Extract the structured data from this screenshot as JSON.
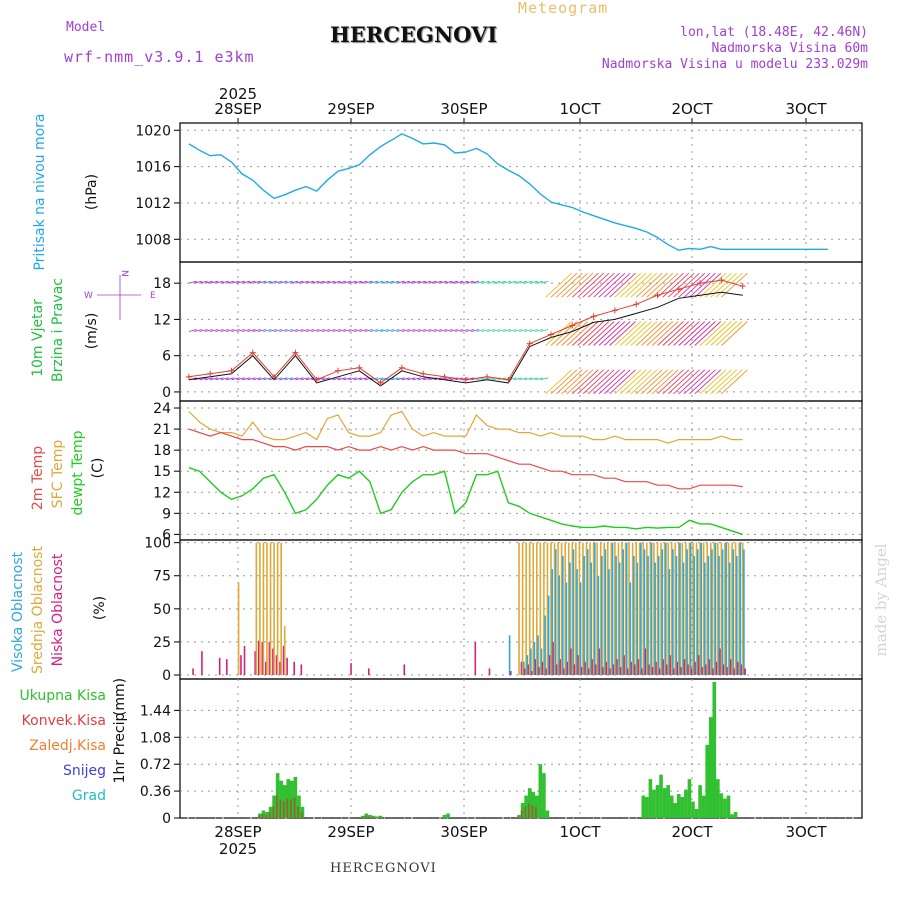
{
  "header": {
    "model_label": "Model",
    "model_name": "wrf-nmm_v3.9.1 e3km",
    "title": "HERCEGNOVI",
    "meteogram": "Meteogram",
    "coords": "lon,lat (18.48E, 42.46N)",
    "elevation": "Nadmorska Visina 60m",
    "model_elevation": "Nadmorska Visina u modelu 233.029m"
  },
  "footer": {
    "station": "HERCEGNOVI",
    "credit": "made by Angel"
  },
  "colors": {
    "pressure": "#22a8e8",
    "t2m": "#e84848",
    "tsfc": "#e0a838",
    "dewpt": "#20cc20",
    "wind_low": "#a030e0",
    "wind_mid": "#2090f0",
    "gust": "#e04030",
    "cloud_high": "#30a8d8",
    "cloud_mid": "#e0a838",
    "cloud_low": "#d02080",
    "precip_total": "#30c030",
    "precip_conv": "#e04040"
  },
  "chart_data": [
    {
      "type": "line",
      "panel": "pressure",
      "ylabel": "Pritisak na nivou mora",
      "unit": "(hPa)",
      "yticks": [
        1008,
        1012,
        1016,
        1020
      ],
      "ylim": [
        1005.5,
        1020.8
      ],
      "x_top_labels": [
        "28SEP",
        "29SEP",
        "30SEP",
        "1OCT",
        "2OCT",
        "3OCT"
      ],
      "x_top_year": "2025",
      "x_hours": [
        0,
        6,
        12,
        18,
        24,
        30,
        36,
        42,
        48,
        54,
        60,
        66,
        72,
        78,
        84,
        90,
        96,
        102,
        108,
        114,
        120,
        126,
        132,
        138,
        144,
        150,
        156,
        162,
        168,
        174,
        180,
        186,
        192,
        198,
        204,
        210,
        216,
        222,
        228,
        234,
        240,
        246,
        252,
        258,
        264,
        270,
        276,
        282,
        288,
        294,
        300,
        306,
        312,
        318,
        324,
        330,
        336,
        342,
        348,
        354,
        360
      ],
      "series": [
        {
          "name": "MSLP",
          "values": [
            1018.5,
            1017.8,
            1017.2,
            1017.3,
            1016.5,
            1015.2,
            1014.5,
            1013.4,
            1012.5,
            1012.9,
            1013.4,
            1013.8,
            1013.3,
            1014.5,
            1015.5,
            1015.8,
            1016.2,
            1017.3,
            1018.2,
            1018.9,
            1019.6,
            1019.1,
            1018.5,
            1018.6,
            1018.4,
            1017.5,
            1017.6,
            1018.0,
            1017.4,
            1016.3,
            1015.6,
            1015.0,
            1014.1,
            1013.0,
            1012.1,
            1011.8,
            1011.5,
            1011.0,
            1010.6,
            1010.2,
            1009.8,
            1009.5,
            1009.2,
            1008.8,
            1008.2,
            1007.4,
            1006.8,
            1007.0,
            1006.9,
            1007.2,
            1006.9,
            1006.9,
            1006.9,
            1006.9,
            1006.9,
            1006.9,
            1006.9,
            1006.9,
            1006.9,
            1006.9,
            1006.9
          ]
        }
      ]
    },
    {
      "type": "line",
      "panel": "wind",
      "ylabel": "10m Vjetar",
      "ylabel2": "Brzina i Pravac",
      "unit": "(m/s)",
      "compass": {
        "n": "N",
        "w": "W",
        "e": "E"
      },
      "yticks": [
        0,
        6,
        12,
        18
      ],
      "ylim": [
        -1.5,
        21.5
      ],
      "x_hours": [
        0,
        12,
        24,
        36,
        48,
        60,
        72,
        84,
        96,
        108,
        120,
        132,
        144,
        156,
        168,
        180,
        192,
        204,
        216,
        228,
        240,
        252,
        264,
        276,
        288,
        300,
        312
      ],
      "series": [
        {
          "name": "wind_speed",
          "values": [
            2.0,
            2.5,
            3.0,
            6.0,
            2.0,
            6.0,
            1.5,
            2.5,
            3.5,
            1.0,
            3.5,
            2.5,
            2.0,
            1.5,
            2.0,
            1.5,
            7.5,
            9.0,
            10.0,
            11.5,
            12.0,
            13.0,
            14.0,
            15.5,
            16.0,
            16.5,
            16.0
          ]
        },
        {
          "name": "gust",
          "values": [
            2.5,
            3.0,
            3.5,
            6.5,
            2.5,
            6.5,
            2.0,
            3.5,
            4.0,
            1.5,
            4.0,
            3.0,
            2.5,
            2.0,
            2.5,
            2.0,
            8.0,
            9.5,
            11.0,
            12.5,
            13.5,
            14.5,
            16.0,
            17.0,
            18.0,
            18.5,
            17.5
          ]
        }
      ]
    },
    {
      "type": "line",
      "panel": "temperature",
      "ylabel": "2m Temp",
      "ylabel2": "SFC Temp",
      "ylabel3": "dewpt Temp",
      "unit": "(C)",
      "yticks": [
        6,
        9,
        12,
        15,
        18,
        21,
        24
      ],
      "ylim": [
        5.2,
        25.0
      ],
      "x_hours": [
        0,
        6,
        12,
        18,
        24,
        30,
        36,
        42,
        48,
        54,
        60,
        66,
        72,
        78,
        84,
        90,
        96,
        102,
        108,
        114,
        120,
        126,
        132,
        138,
        144,
        150,
        156,
        162,
        168,
        174,
        180,
        186,
        192,
        198,
        204,
        210,
        216,
        222,
        228,
        234,
        240,
        246,
        252,
        258,
        264,
        270,
        276,
        282,
        288,
        294,
        300,
        306,
        312
      ],
      "series": [
        {
          "name": "2m Temp",
          "values": [
            21.0,
            20.5,
            20.0,
            20.5,
            20.0,
            19.5,
            19.5,
            19.0,
            18.5,
            18.5,
            18.0,
            18.5,
            18.5,
            18.5,
            18.0,
            18.5,
            18.0,
            18.0,
            18.5,
            18.0,
            18.5,
            18.0,
            18.5,
            18.0,
            18.0,
            18.0,
            17.5,
            17.5,
            17.5,
            17.0,
            16.5,
            16.0,
            16.0,
            15.5,
            15.0,
            15.0,
            14.5,
            14.5,
            14.5,
            14.0,
            14.0,
            13.5,
            13.5,
            13.5,
            13.0,
            13.0,
            12.5,
            12.5,
            13.0,
            13.0,
            13.0,
            13.0,
            12.8
          ]
        },
        {
          "name": "SFC Temp",
          "values": [
            23.5,
            22.0,
            21.0,
            20.5,
            20.5,
            20.0,
            22.0,
            20.0,
            19.5,
            19.5,
            20.0,
            20.5,
            19.5,
            22.5,
            23.0,
            20.5,
            20.0,
            20.0,
            20.5,
            23.0,
            23.5,
            21.0,
            20.0,
            20.5,
            20.0,
            20.0,
            20.0,
            23.0,
            21.5,
            21.0,
            21.0,
            20.5,
            20.5,
            20.0,
            20.5,
            20.0,
            20.0,
            20.0,
            19.5,
            19.5,
            20.0,
            19.5,
            19.5,
            19.5,
            19.5,
            19.0,
            19.5,
            19.5,
            19.5,
            19.5,
            20.0,
            19.5,
            19.5
          ]
        },
        {
          "name": "dewpt Temp",
          "values": [
            15.5,
            15.0,
            13.5,
            12.0,
            11.0,
            11.5,
            12.5,
            14.0,
            14.5,
            12.0,
            9.0,
            9.5,
            11.0,
            13.0,
            14.5,
            14.0,
            15.0,
            13.5,
            9.0,
            9.5,
            12.0,
            13.5,
            14.5,
            14.5,
            15.0,
            9.0,
            10.5,
            14.5,
            14.5,
            15.0,
            10.5,
            10.0,
            9.0,
            8.5,
            8.0,
            7.5,
            7.2,
            7.0,
            7.0,
            7.2,
            7.0,
            7.0,
            6.8,
            7.0,
            6.9,
            7.0,
            7.0,
            8.0,
            7.5,
            7.5,
            7.0,
            6.5,
            6.0
          ]
        }
      ]
    },
    {
      "type": "bar",
      "panel": "clouds",
      "ylabel": "Visoka Oblacnost",
      "ylabel2": "Srednja Oblacnost",
      "ylabel3": "Niska Oblacnost",
      "unit": "(%)",
      "yticks": [
        0,
        25,
        50,
        75,
        100
      ],
      "ylim": [
        -3,
        102
      ],
      "x_hours": [
        1,
        6,
        16,
        20,
        28,
        30,
        36,
        38,
        40,
        42,
        44,
        46,
        48,
        50,
        52,
        54,
        58,
        62,
        90,
        100,
        120,
        160,
        168,
        180,
        186,
        188,
        190,
        192,
        194,
        196,
        198,
        200,
        202,
        204,
        206,
        208,
        210,
        212,
        214,
        216,
        218,
        220,
        222,
        224,
        226,
        228,
        230,
        232,
        234,
        236,
        238,
        240,
        242,
        244,
        246,
        248,
        250,
        252,
        254,
        256,
        258,
        260,
        262,
        264,
        266,
        268,
        270,
        272,
        274,
        276,
        278,
        280,
        282,
        284,
        286,
        288,
        290,
        292,
        294,
        296,
        298,
        300,
        302,
        304,
        306,
        308,
        310,
        312
      ],
      "series": [
        {
          "name": "Srednja",
          "values": [
            0,
            0,
            0,
            0,
            70,
            0,
            0,
            100,
            100,
            100,
            100,
            100,
            100,
            100,
            100,
            37,
            0,
            0,
            0,
            0,
            0,
            0,
            0,
            0,
            100,
            100,
            100,
            100,
            100,
            100,
            100,
            100,
            100,
            100,
            100,
            100,
            100,
            100,
            100,
            100,
            100,
            100,
            100,
            100,
            100,
            100,
            100,
            100,
            100,
            100,
            100,
            100,
            100,
            100,
            100,
            100,
            100,
            100,
            100,
            100,
            100,
            100,
            100,
            100,
            100,
            100,
            100,
            100,
            100,
            100,
            100,
            100,
            100,
            100,
            100,
            100,
            100,
            100,
            100,
            100,
            100,
            100,
            100,
            100,
            100,
            100,
            100,
            100
          ]
        },
        {
          "name": "Visoka",
          "values": [
            0,
            0,
            0,
            0,
            0,
            0,
            0,
            0,
            0,
            0,
            0,
            0,
            0,
            0,
            0,
            0,
            0,
            0,
            0,
            0,
            0,
            0,
            0,
            30,
            0,
            10,
            15,
            20,
            25,
            30,
            20,
            45,
            60,
            80,
            95,
            75,
            90,
            70,
            85,
            95,
            80,
            70,
            90,
            95,
            85,
            100,
            75,
            90,
            95,
            80,
            100,
            90,
            85,
            95,
            100,
            70,
            90,
            85,
            100,
            95,
            90,
            100,
            85,
            90,
            95,
            100,
            80,
            95,
            90,
            100,
            85,
            95,
            100,
            90,
            95,
            100,
            85,
            90,
            95,
            100,
            90,
            95,
            100,
            85,
            95,
            90,
            100,
            95
          ]
        },
        {
          "name": "Niska",
          "values": [
            5,
            18,
            13,
            12,
            15,
            22,
            18,
            26,
            25,
            10,
            25,
            20,
            15,
            10,
            22,
            13,
            10,
            8,
            9,
            5,
            8,
            25,
            5,
            3,
            10,
            5,
            8,
            3,
            12,
            6,
            10,
            5,
            15,
            25,
            8,
            12,
            5,
            10,
            20,
            8,
            15,
            6,
            10,
            5,
            12,
            8,
            20,
            6,
            10,
            5,
            8,
            12,
            6,
            15,
            5,
            10,
            8,
            12,
            5,
            20,
            8,
            6,
            10,
            5,
            12,
            8,
            15,
            5,
            10,
            6,
            12,
            8,
            5,
            10,
            15,
            6,
            8,
            12,
            5,
            10,
            20,
            8,
            6,
            12,
            5,
            10,
            8,
            5
          ]
        }
      ]
    },
    {
      "type": "bar",
      "panel": "precip",
      "ylabel": "1hr Precip",
      "unit": "(mm)",
      "legend": [
        "Ukupna Kisa",
        "Konvek.Kisa",
        "Zaledj.Kisa",
        "Snijeg",
        "Grad"
      ],
      "yticks": [
        0,
        0.36,
        0.72,
        1.08,
        1.44
      ],
      "ytick_labels": [
        "0",
        "0.36",
        "0.72",
        "1.08",
        "1.44"
      ],
      "ylim": [
        0,
        1.86
      ],
      "x_bottom_labels": [
        "28SEP",
        "29SEP",
        "30SEP",
        "1OCT",
        "2OCT",
        "3OCT"
      ],
      "x_bottom_year": "2025",
      "x_hours": [
        40,
        42,
        44,
        46,
        48,
        50,
        52,
        54,
        56,
        58,
        60,
        62,
        64,
        98,
        100,
        102,
        104,
        106,
        108,
        144,
        146,
        186,
        188,
        190,
        192,
        194,
        196,
        198,
        200,
        202,
        256,
        258,
        260,
        262,
        264,
        266,
        268,
        270,
        272,
        274,
        276,
        278,
        280,
        282,
        284,
        286,
        288,
        290,
        292,
        294,
        296,
        298,
        300,
        302,
        304,
        306,
        308
      ],
      "series": [
        {
          "name": "Ukupna Kisa",
          "values": [
            0.06,
            0.1,
            0.08,
            0.15,
            0.3,
            0.6,
            0.5,
            0.44,
            0.52,
            0.5,
            0.55,
            0.3,
            0.15,
            0.03,
            0.06,
            0.04,
            0.03,
            0.02,
            0.03,
            0.04,
            0.06,
            0.04,
            0.2,
            0.3,
            0.4,
            0.35,
            0.3,
            0.72,
            0.6,
            0.1,
            0.3,
            0.28,
            0.52,
            0.38,
            0.44,
            0.58,
            0.4,
            0.44,
            0.3,
            0.2,
            0.32,
            0.28,
            0.38,
            0.52,
            0.22,
            0.12,
            0.44,
            0.3,
            0.98,
            1.35,
            1.82,
            0.52,
            0.33,
            0.26,
            0.3,
            0.05,
            0.08
          ]
        },
        {
          "name": "Konvek.Kisa",
          "values": [
            0.06,
            0.1,
            0.08,
            0.15,
            0.3,
            0.6,
            0.5,
            0.44,
            0.52,
            0.5,
            0.55,
            0.3,
            0.15,
            0.03,
            0.06,
            0.04,
            0.03,
            0.02,
            0.03,
            0.0,
            0.0,
            0.04,
            0.2,
            0.3,
            0.4,
            0.35,
            0.3,
            0.0,
            0.0,
            0.0,
            0,
            0,
            0,
            0,
            0,
            0,
            0,
            0,
            0,
            0,
            0,
            0,
            0,
            0,
            0,
            0,
            0,
            0,
            0,
            0,
            0,
            0,
            0,
            0,
            0,
            0,
            0
          ]
        }
      ]
    }
  ]
}
